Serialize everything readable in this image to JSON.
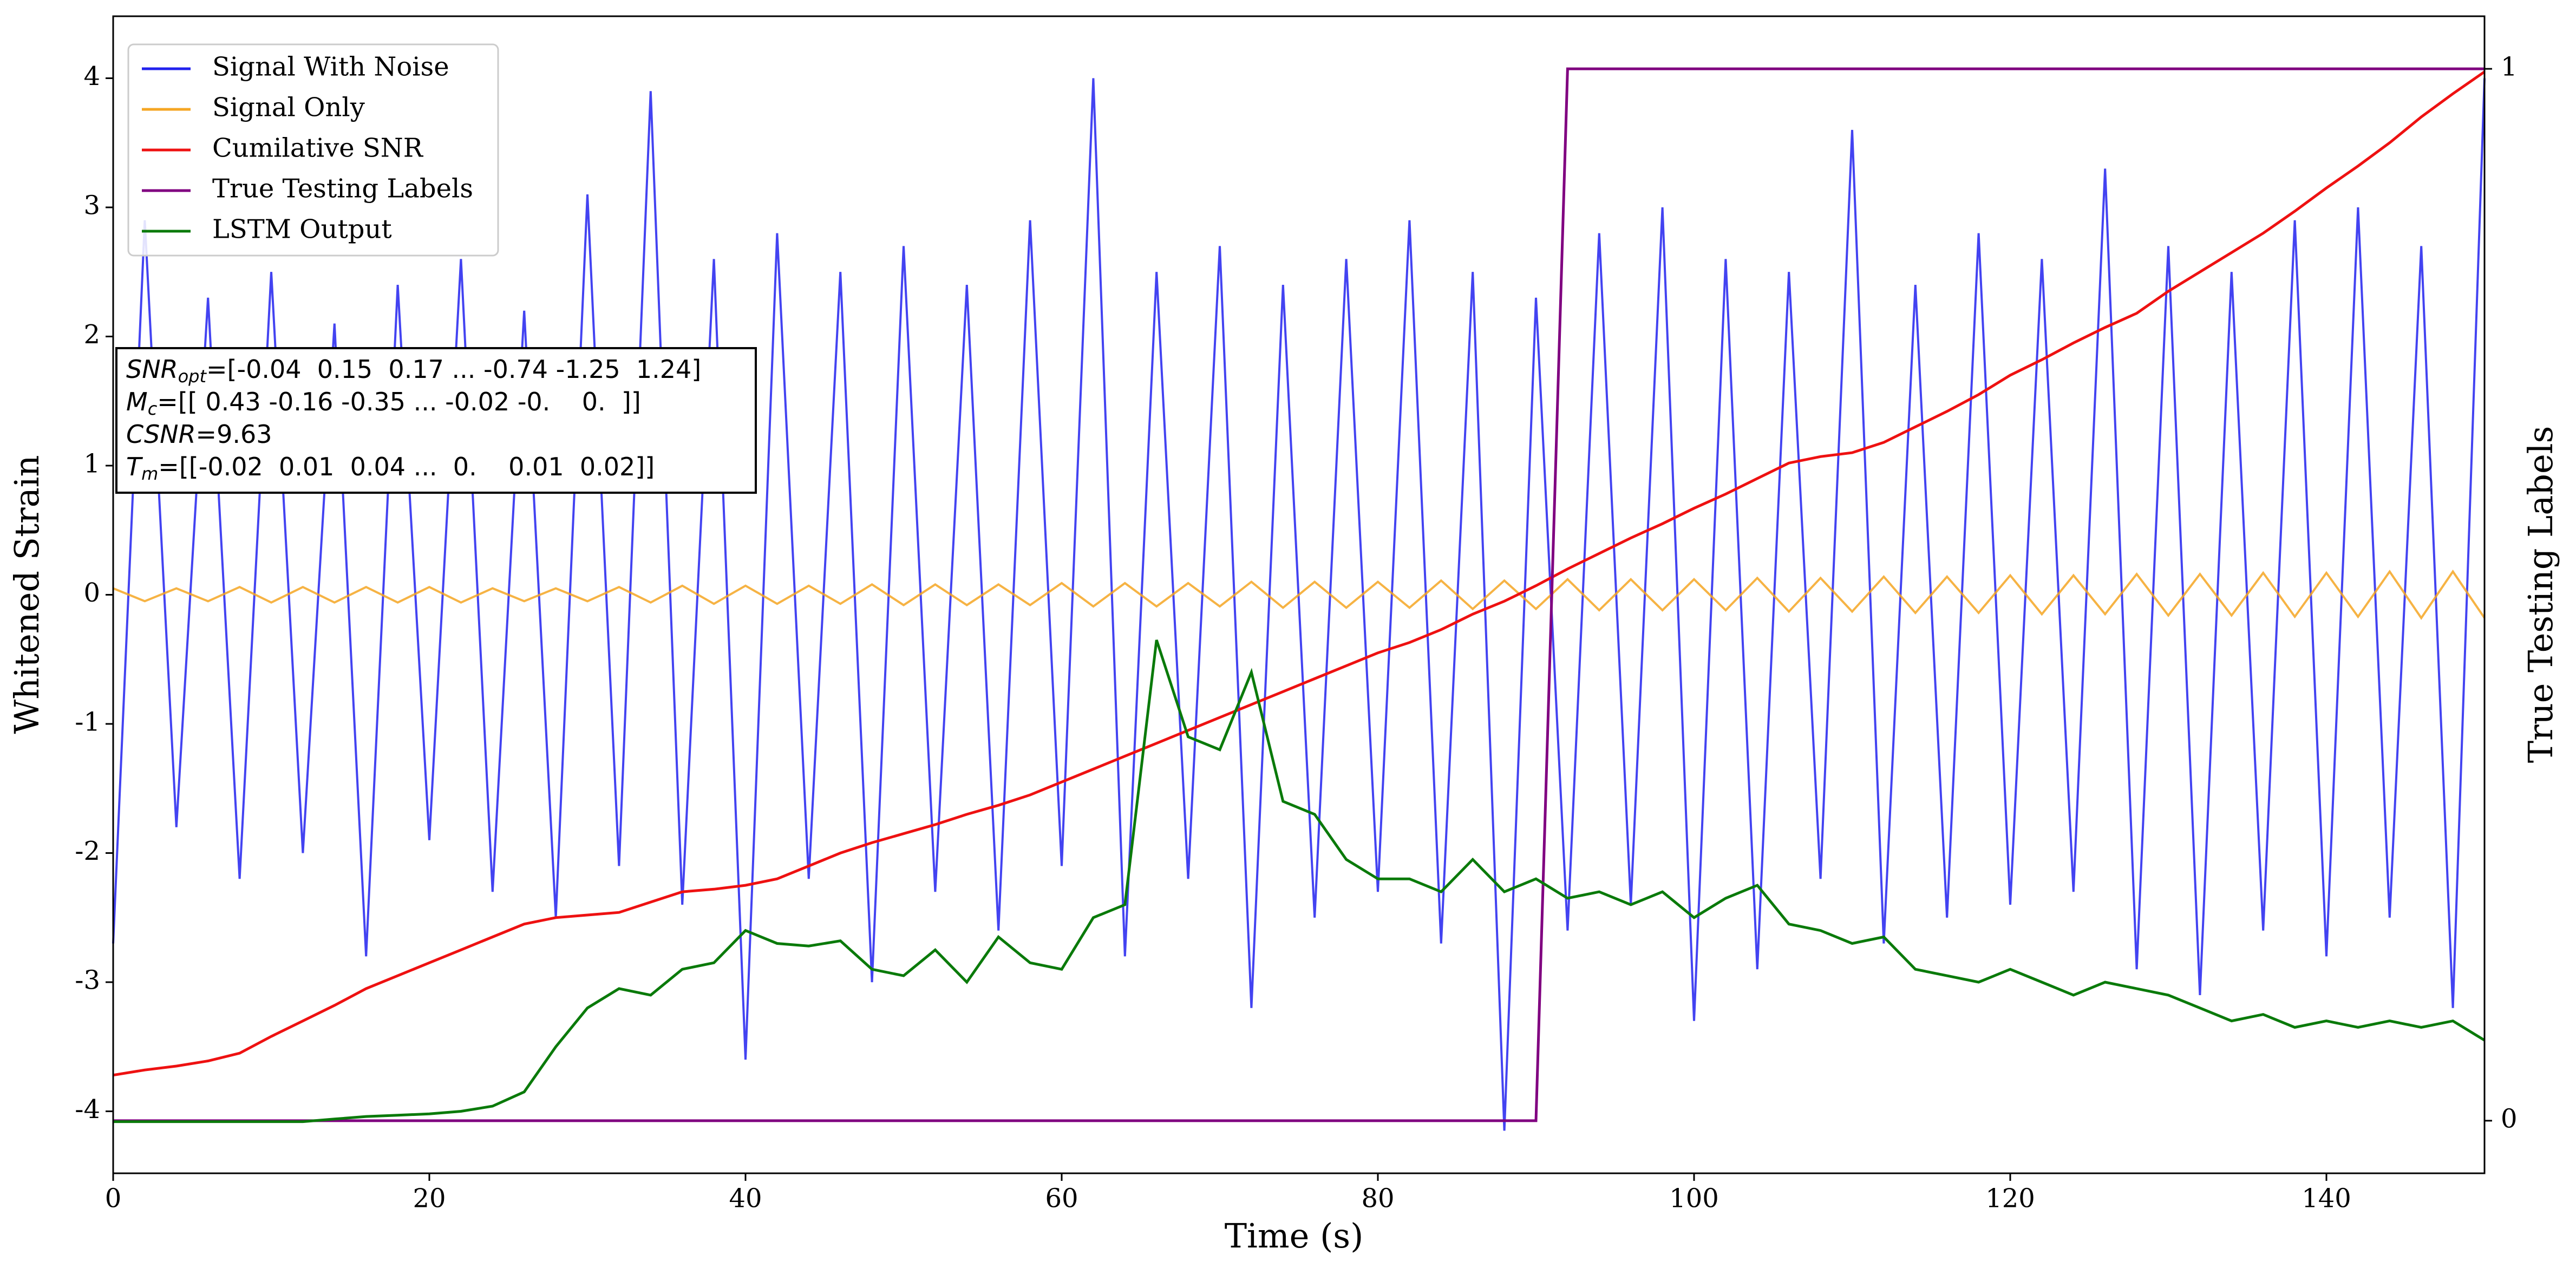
{
  "chart_data": {
    "type": "line",
    "xlabel": "Time (s)",
    "ylabel": "Whitened Strain",
    "y2label": "True Testing Labels",
    "xlim": [
      0,
      150
    ],
    "xticks": [
      0,
      20,
      40,
      60,
      80,
      100,
      120,
      140
    ],
    "ylim": [
      -4.48,
      4.48
    ],
    "yticks": [
      -4,
      -3,
      -2,
      -1,
      0,
      1,
      2,
      3,
      4
    ],
    "y2lim": [
      -0.05,
      1.05
    ],
    "y2ticks": [
      0,
      1
    ],
    "legend": "upper left",
    "x": [
      0,
      2,
      4,
      6,
      8,
      10,
      12,
      14,
      16,
      18,
      20,
      22,
      24,
      26,
      28,
      30,
      32,
      34,
      36,
      38,
      40,
      42,
      44,
      46,
      48,
      50,
      52,
      54,
      56,
      58,
      60,
      62,
      64,
      66,
      68,
      70,
      72,
      74,
      76,
      78,
      80,
      82,
      84,
      86,
      88,
      90,
      92,
      94,
      96,
      98,
      100,
      102,
      104,
      106,
      108,
      110,
      112,
      114,
      116,
      118,
      120,
      122,
      124,
      126,
      128,
      130,
      132,
      134,
      136,
      138,
      140,
      142,
      144,
      146,
      148,
      150
    ],
    "series": [
      {
        "name": "Signal With Noise",
        "color": "#2222ee",
        "values": [
          -2.7,
          2.9,
          -1.8,
          2.3,
          -2.2,
          2.5,
          -2.0,
          2.1,
          -2.8,
          2.4,
          -1.9,
          2.6,
          -2.3,
          2.2,
          -2.5,
          3.1,
          -2.1,
          3.9,
          -2.4,
          2.6,
          -3.6,
          2.8,
          -2.2,
          2.5,
          -3.0,
          2.7,
          -2.3,
          2.4,
          -2.6,
          2.9,
          -2.1,
          4.0,
          -2.8,
          2.5,
          -2.2,
          2.7,
          -3.2,
          2.4,
          -2.5,
          2.6,
          -2.3,
          2.9,
          -2.7,
          2.5,
          -4.15,
          2.3,
          -2.6,
          2.8,
          -2.4,
          3.0,
          -3.3,
          2.6,
          -2.9,
          2.5,
          -2.2,
          3.6,
          -2.7,
          2.4,
          -2.5,
          2.8,
          -2.4,
          2.6,
          -2.3,
          3.3,
          -2.9,
          2.7,
          -3.1,
          2.5,
          -2.6,
          2.9,
          -2.8,
          3.0,
          -2.5,
          2.7,
          -3.2,
          4.0
        ]
      },
      {
        "name": "Signal Only",
        "color": "#f5a623",
        "values": [
          0.05,
          -0.05,
          0.05,
          -0.05,
          0.06,
          -0.06,
          0.06,
          -0.06,
          0.06,
          -0.06,
          0.06,
          -0.06,
          0.05,
          -0.05,
          0.05,
          -0.05,
          0.06,
          -0.06,
          0.07,
          -0.07,
          0.07,
          -0.07,
          0.07,
          -0.07,
          0.08,
          -0.08,
          0.08,
          -0.08,
          0.08,
          -0.08,
          0.09,
          -0.09,
          0.09,
          -0.09,
          0.09,
          -0.09,
          0.1,
          -0.1,
          0.1,
          -0.1,
          0.1,
          -0.1,
          0.11,
          -0.11,
          0.11,
          -0.11,
          0.12,
          -0.12,
          0.12,
          -0.12,
          0.12,
          -0.12,
          0.13,
          -0.13,
          0.13,
          -0.13,
          0.14,
          -0.14,
          0.14,
          -0.14,
          0.15,
          -0.15,
          0.15,
          -0.15,
          0.16,
          -0.16,
          0.16,
          -0.16,
          0.17,
          -0.17,
          0.17,
          -0.17,
          0.18,
          -0.18,
          0.18,
          -0.18
        ]
      },
      {
        "name": "Cumilative SNR",
        "color": "#ee1111",
        "values": [
          -3.72,
          -3.68,
          -3.65,
          -3.61,
          -3.55,
          -3.42,
          -3.3,
          -3.18,
          -3.05,
          -2.95,
          -2.85,
          -2.75,
          -2.65,
          -2.55,
          -2.5,
          -2.48,
          -2.46,
          -2.38,
          -2.3,
          -2.28,
          -2.25,
          -2.2,
          -2.1,
          -2.0,
          -1.92,
          -1.85,
          -1.78,
          -1.7,
          -1.63,
          -1.55,
          -1.45,
          -1.35,
          -1.25,
          -1.15,
          -1.05,
          -0.95,
          -0.85,
          -0.75,
          -0.65,
          -0.55,
          -0.45,
          -0.37,
          -0.27,
          -0.15,
          -0.05,
          0.07,
          0.2,
          0.32,
          0.44,
          0.55,
          0.67,
          0.78,
          0.9,
          1.02,
          1.07,
          1.1,
          1.18,
          1.3,
          1.42,
          1.55,
          1.7,
          1.82,
          1.95,
          2.07,
          2.18,
          2.35,
          2.5,
          2.65,
          2.8,
          2.97,
          3.15,
          3.32,
          3.5,
          3.7,
          3.88,
          4.05
        ]
      },
      {
        "name": "True Testing Labels",
        "color": "#800080",
        "axis": "y2",
        "values": [
          0,
          0,
          0,
          0,
          0,
          0,
          0,
          0,
          0,
          0,
          0,
          0,
          0,
          0,
          0,
          0,
          0,
          0,
          0,
          0,
          0,
          0,
          0,
          0,
          0,
          0,
          0,
          0,
          0,
          0,
          0,
          0,
          0,
          0,
          0,
          0,
          0,
          0,
          0,
          0,
          0,
          0,
          0,
          0,
          0,
          0,
          1,
          1,
          1,
          1,
          1,
          1,
          1,
          1,
          1,
          1,
          1,
          1,
          1,
          1,
          1,
          1,
          1,
          1,
          1,
          1,
          1,
          1,
          1,
          1,
          1,
          1,
          1,
          1,
          1,
          1
        ]
      },
      {
        "name": "LSTM Output",
        "color": "#0a7a0a",
        "values": [
          -4.08,
          -4.08,
          -4.08,
          -4.08,
          -4.08,
          -4.08,
          -4.08,
          -4.06,
          -4.04,
          -4.03,
          -4.02,
          -4.0,
          -3.96,
          -3.85,
          -3.5,
          -3.2,
          -3.05,
          -3.1,
          -2.9,
          -2.85,
          -2.6,
          -2.7,
          -2.72,
          -2.68,
          -2.9,
          -2.95,
          -2.75,
          -3.0,
          -2.65,
          -2.85,
          -2.9,
          -2.5,
          -2.4,
          -0.35,
          -1.1,
          -1.2,
          -0.6,
          -1.6,
          -1.7,
          -2.05,
          -2.2,
          -2.2,
          -2.3,
          -2.05,
          -2.3,
          -2.2,
          -2.35,
          -2.3,
          -2.4,
          -2.3,
          -2.5,
          -2.35,
          -2.25,
          -2.55,
          -2.6,
          -2.7,
          -2.65,
          -2.9,
          -2.95,
          -3.0,
          -2.9,
          -3.0,
          -3.1,
          -3.0,
          -3.05,
          -3.1,
          -3.2,
          -3.3,
          -3.25,
          -3.35,
          -3.3,
          -3.35,
          -3.3,
          -3.35,
          -3.3,
          -3.45
        ]
      }
    ],
    "annotation": [
      {
        "symbol": "SNR",
        "sub": "opt",
        "text": "=[-0.04  0.15  0.17 ... -0.74 -1.25  1.24]"
      },
      {
        "symbol": "M",
        "sub": "c",
        "text": "=[[ 0.43 -0.16 -0.35 ... -0.02 -0.    0.  ]]"
      },
      {
        "symbol": "CSNR",
        "sub": null,
        "text": "=9.63"
      },
      {
        "symbol": "T",
        "sub": "m",
        "text": "=[[-0.02  0.01  0.04 ...  0.    0.01  0.02]]"
      }
    ]
  }
}
